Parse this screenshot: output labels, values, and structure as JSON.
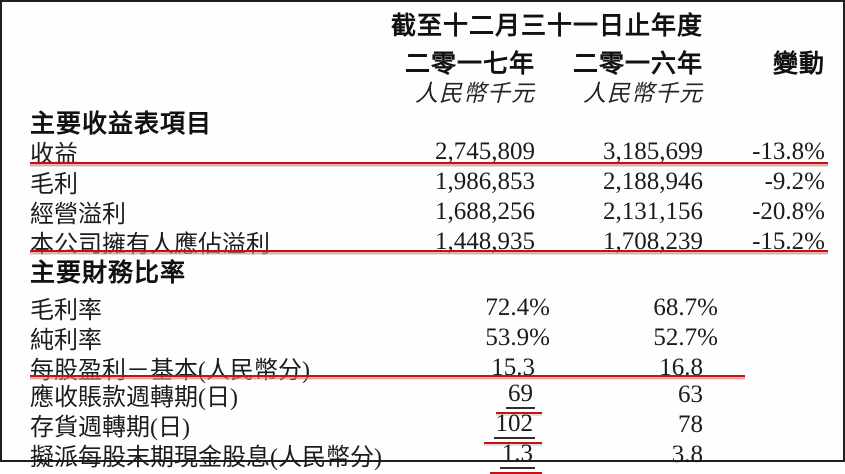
{
  "table": {
    "header": {
      "period": "截至十二月三十一日止年度",
      "col_2017": "二零一七年",
      "col_2016": "二零一六年",
      "col_change": "變動",
      "unit_2017": "人民幣千元",
      "unit_2016": "人民幣千元"
    },
    "sections": [
      {
        "title": "主要收益表項目",
        "rows": [
          {
            "label": "收益",
            "v2017": "2,745,809",
            "v2016": "3,185,699",
            "change": "-13.8%"
          },
          {
            "label": "毛利",
            "v2017": "1,986,853",
            "v2016": "2,188,946",
            "change": "-9.2%"
          },
          {
            "label": "經營溢利",
            "v2017": "1,688,256",
            "v2016": "2,131,156",
            "change": "-20.8%"
          },
          {
            "label": "本公司擁有人應佔溢利",
            "v2017": "1,448,935",
            "v2016": "1,708,239",
            "change": "-15.2%"
          }
        ]
      },
      {
        "title": "主要財務比率",
        "rows": [
          {
            "label": "毛利率",
            "v2017": "72.4%",
            "v2016": "68.7%"
          },
          {
            "label": "純利率",
            "v2017": "53.9%",
            "v2016": "52.7%"
          },
          {
            "label": "每股盈利－基本(人民幣分)",
            "v2017": "15.3",
            "v2016": "16.8"
          },
          {
            "label": "應收賬款週轉期(日)",
            "v2017": "69",
            "v2016": "63"
          },
          {
            "label": "存貨週轉期(日)",
            "v2017": "102",
            "v2016": "78"
          },
          {
            "label": "擬派每股末期現金股息(人民幣分)",
            "v2017": "1.3",
            "v2016": "3.8"
          }
        ]
      }
    ],
    "annotation_color": "#c41212"
  }
}
